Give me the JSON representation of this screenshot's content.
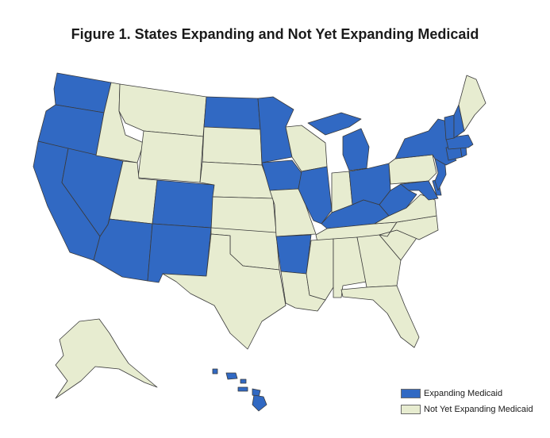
{
  "title": "Figure 1. States Expanding and Not Yet Expanding Medicaid",
  "colors": {
    "expanding": "#3169c3",
    "not_expanding": "#e7ecd0",
    "border": "#3a3a3a"
  },
  "legend": [
    {
      "key": "expanding",
      "label": "Expanding Medicaid"
    },
    {
      "key": "not_expanding",
      "label": "Not Yet Expanding Medicaid"
    }
  ],
  "states": {
    "expanding": [
      "WA",
      "OR",
      "CA",
      "NV",
      "AZ",
      "CO",
      "NM",
      "ND",
      "MN",
      "IA",
      "AR",
      "IL",
      "MI",
      "OH",
      "KY",
      "WV",
      "MD",
      "DE",
      "NJ",
      "NY",
      "VT",
      "NH",
      "MA",
      "RI",
      "CT",
      "HI"
    ],
    "not_expanding": [
      "ID",
      "MT",
      "WY",
      "UT",
      "SD",
      "NE",
      "KS",
      "OK",
      "TX",
      "MO",
      "LA",
      "MS",
      "AL",
      "TN",
      "GA",
      "FL",
      "SC",
      "NC",
      "VA",
      "PA",
      "WI",
      "IN",
      "ME",
      "AK"
    ]
  }
}
